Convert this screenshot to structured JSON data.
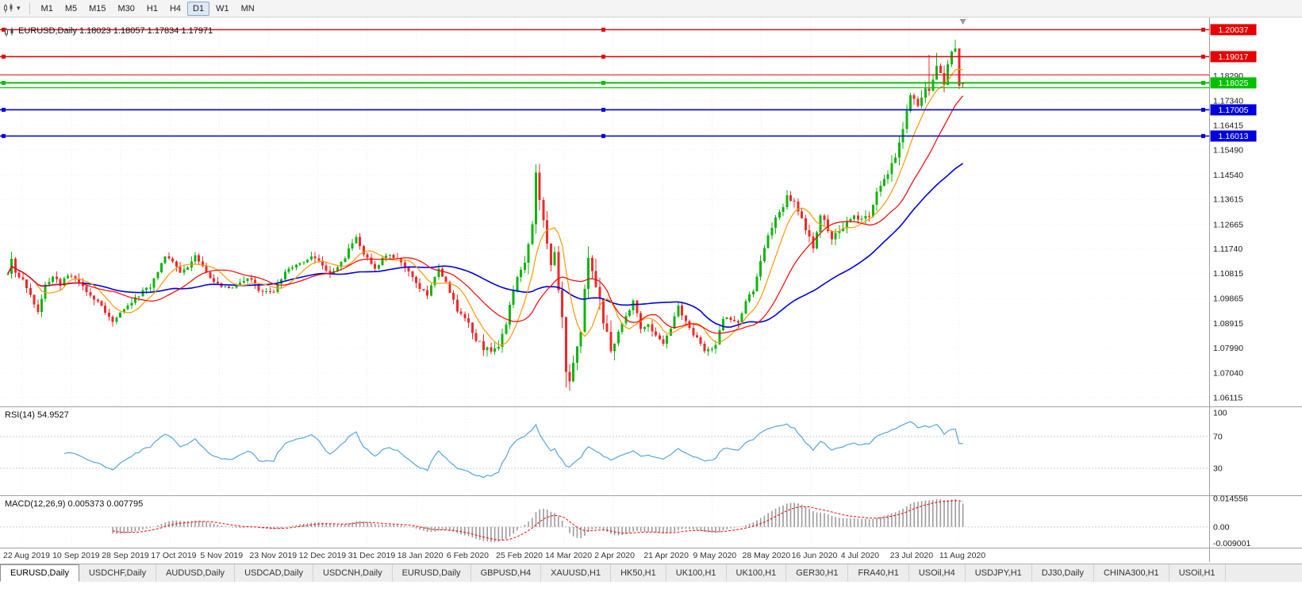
{
  "toolbar": {
    "timeframes": [
      "M1",
      "M5",
      "M15",
      "M30",
      "H1",
      "H4",
      "D1",
      "W1",
      "MN"
    ],
    "selected": "D1"
  },
  "main_chart": {
    "title_line": "EURUSD,Daily 1.18023 1.18057 1.17834 1.17971",
    "symbol": "EURUSD",
    "period": "Daily",
    "price_ticks": [
      "1.18290",
      "1.17340",
      "1.16415",
      "1.15490",
      "1.14540",
      "1.13615",
      "1.12665",
      "1.11740",
      "1.10815",
      "1.09865",
      "1.08915",
      "1.07990",
      "1.07040",
      "1.06115"
    ],
    "hlines": [
      {
        "price": 1.20037,
        "label": "1.20037",
        "color": "#e60000",
        "width": 1.4
      },
      {
        "price": 1.19017,
        "label": "1.19017",
        "color": "#e60000",
        "width": 1.4
      },
      {
        "price": 1.1833,
        "label": null,
        "color": "#e60000",
        "width": 1.1
      },
      {
        "price": 1.18025,
        "label": "1.18025",
        "color": "#00c000",
        "width": 2
      },
      {
        "price": 1.1784,
        "label": null,
        "color": "#00c000",
        "width": 1.1
      },
      {
        "price": 1.17005,
        "label": "1.17005",
        "color": "#0000dd",
        "width": 1.6
      },
      {
        "price": 1.16013,
        "label": "1.16013",
        "color": "#0000dd",
        "width": 1.6
      }
    ],
    "colors": {
      "up": "#0fb50f",
      "down": "#ef2929",
      "grid": "#e9e9e9",
      "separator": "#9e9e9e",
      "axis_text": "#1a1a1a",
      "date_text": "#333333",
      "rsi_line": "#52a7e0",
      "macd_hist": "#9b9b9b",
      "macd_signal": "#ff0000"
    }
  },
  "rsi": {
    "label_line": "RSI(14) 54.9527",
    "name": "RSI",
    "period": 14,
    "value": "54.9527",
    "ticks": [
      "100",
      "70",
      "30"
    ],
    "levels": [
      70,
      30
    ]
  },
  "macd": {
    "label_line": "MACD(12,26,9) 0.005373 0.007795",
    "name": "MACD",
    "params": "12,26,9",
    "values": "0.005373 0.007795",
    "ticks": [
      "0.014556",
      "0.00",
      "-0.009001"
    ]
  },
  "dates": [
    "22 Aug 2019",
    "10 Sep 2019",
    "28 Sep 2019",
    "17 Oct 2019",
    "5 Nov 2019",
    "23 Nov 2019",
    "12 Dec 2019",
    "31 Dec 2019",
    "18 Jan 2020",
    "6 Feb 2020",
    "25 Feb 2020",
    "14 Mar 2020",
    "2 Apr 2020",
    "21 Apr 2020",
    "9 May 2020",
    "28 May 2020",
    "16 Jun 2020",
    "4 Jul 2020",
    "23 Jul 2020",
    "11 Aug 2020"
  ],
  "window": {
    "active_tab_index": 0,
    "tabs": [
      "EURUSD,Daily",
      "USDCHF,Daily",
      "AUDUSD,Daily",
      "USDCAD,Daily",
      "USDCNH,Daily",
      "EURUSD,Daily",
      "GBPUSD,H4",
      "XAUUSD,H1",
      "HK50,H1",
      "UK100,H1",
      "UK100,H1",
      "GER30,H1",
      "FRA40,H1",
      "USOil,H4",
      "USDJPY,H1",
      "DJ30,Daily",
      "CHINA300,H1",
      "USOil,H1"
    ]
  },
  "chart_data": {
    "type": "candlestick",
    "symbol": "EURUSD",
    "timeframe": "Daily",
    "candles_count": 256,
    "price_range": [
      1.059,
      1.202
    ],
    "last_candle": {
      "open": 1.18023,
      "high": 1.18057,
      "low": 1.17834,
      "close": 1.17971
    },
    "close_anchors": [
      [
        0,
        1.108
      ],
      [
        1,
        1.114
      ],
      [
        2,
        1.109
      ],
      [
        4,
        1.1055
      ],
      [
        6,
        1.0995
      ],
      [
        8,
        1.093
      ],
      [
        10,
        1.1035
      ],
      [
        12,
        1.1065
      ],
      [
        14,
        1.104
      ],
      [
        16,
        1.1073
      ],
      [
        18,
        1.1068
      ],
      [
        21,
        1.1017
      ],
      [
        23,
        1.0985
      ],
      [
        26,
        1.094
      ],
      [
        28,
        1.0895
      ],
      [
        30,
        1.093
      ],
      [
        32,
        1.0965
      ],
      [
        35,
        1.1
      ],
      [
        38,
        1.1034
      ],
      [
        40,
        1.109
      ],
      [
        42,
        1.115
      ],
      [
        44,
        1.1125
      ],
      [
        46,
        1.108
      ],
      [
        48,
        1.1105
      ],
      [
        50,
        1.1152
      ],
      [
        52,
        1.111
      ],
      [
        54,
        1.1067
      ],
      [
        57,
        1.103
      ],
      [
        60,
        1.1022
      ],
      [
        62,
        1.105
      ],
      [
        65,
        1.1059
      ],
      [
        68,
        1.1005
      ],
      [
        71,
        1.1018
      ],
      [
        73,
        1.106
      ],
      [
        75,
        1.1104
      ],
      [
        78,
        1.112
      ],
      [
        80,
        1.1131
      ],
      [
        82,
        1.1145
      ],
      [
        84,
        1.111
      ],
      [
        86,
        1.1078
      ],
      [
        89,
        1.112
      ],
      [
        91,
        1.117
      ],
      [
        93,
        1.1212
      ],
      [
        95,
        1.116
      ],
      [
        98,
        1.1103
      ],
      [
        101,
        1.1155
      ],
      [
        104,
        1.1136
      ],
      [
        107,
        1.109
      ],
      [
        110,
        1.1023
      ],
      [
        112,
        1.1
      ],
      [
        115,
        1.1093
      ],
      [
        117,
        1.1048
      ],
      [
        120,
        1.0945
      ],
      [
        122,
        1.0915
      ],
      [
        125,
        1.083
      ],
      [
        127,
        1.08
      ],
      [
        129,
        1.0786
      ],
      [
        131,
        1.0805
      ],
      [
        133,
        1.0885
      ],
      [
        135,
        1.1026
      ],
      [
        137,
        1.109
      ],
      [
        138,
        1.1134
      ],
      [
        140,
        1.128
      ],
      [
        141,
        1.1452
      ],
      [
        142,
        1.136
      ],
      [
        143,
        1.128
      ],
      [
        144,
        1.1184
      ],
      [
        145,
        1.1105
      ],
      [
        146,
        1.118
      ],
      [
        147,
        1.102
      ],
      [
        148,
        1.092
      ],
      [
        149,
        1.069
      ],
      [
        150,
        1.0655
      ],
      [
        151,
        1.0725
      ],
      [
        152,
        1.079
      ],
      [
        153,
        1.085
      ],
      [
        154,
        1.101
      ],
      [
        155,
        1.114
      ],
      [
        156,
        1.108
      ],
      [
        157,
        1.1031
      ],
      [
        159,
        1.091
      ],
      [
        161,
        1.0791
      ],
      [
        163,
        1.086
      ],
      [
        165,
        1.0915
      ],
      [
        167,
        1.098
      ],
      [
        169,
        1.087
      ],
      [
        171,
        1.0885
      ],
      [
        172,
        1.0858
      ],
      [
        175,
        1.0821
      ],
      [
        177,
        1.088
      ],
      [
        179,
        1.0955
      ],
      [
        181,
        1.09
      ],
      [
        184,
        1.0833
      ],
      [
        186,
        1.0795
      ],
      [
        188,
        1.08
      ],
      [
        189,
        1.0805
      ],
      [
        191,
        1.0915
      ],
      [
        193,
        1.09
      ],
      [
        195,
        1.089
      ],
      [
        197,
        1.0982
      ],
      [
        199,
        1.101
      ],
      [
        201,
        1.1134
      ],
      [
        203,
        1.123
      ],
      [
        205,
        1.1291
      ],
      [
        207,
        1.134
      ],
      [
        208,
        1.1375
      ],
      [
        210,
        1.1345
      ],
      [
        211,
        1.1324
      ],
      [
        213,
        1.125
      ],
      [
        215,
        1.1177
      ],
      [
        217,
        1.1308
      ],
      [
        219,
        1.125
      ],
      [
        220,
        1.1218
      ],
      [
        222,
        1.1234
      ],
      [
        224,
        1.127
      ],
      [
        226,
        1.1308
      ],
      [
        228,
        1.128
      ],
      [
        230,
        1.13
      ],
      [
        232,
        1.1398
      ],
      [
        234,
        1.144
      ],
      [
        236,
        1.149
      ],
      [
        237,
        1.1526
      ],
      [
        239,
        1.162
      ],
      [
        241,
        1.1751
      ],
      [
        243,
        1.172
      ],
      [
        245,
        1.1778
      ],
      [
        246,
        1.1762
      ],
      [
        248,
        1.1873
      ],
      [
        249,
        1.184
      ],
      [
        250,
        1.1789
      ],
      [
        251,
        1.1864
      ],
      [
        252,
        1.192
      ],
      [
        253,
        1.1933
      ],
      [
        254,
        1.1797
      ],
      [
        255,
        1.17971
      ]
    ],
    "wick_overrides": {
      "1": {
        "high": 1.1164
      },
      "141": {
        "high": 1.1495
      },
      "149": {
        "low": 1.065
      },
      "150": {
        "low": 1.0636
      },
      "246": {
        "high": 1.1909
      },
      "248": {
        "high": 1.1916
      },
      "253": {
        "high": 1.1966
      }
    },
    "vol_zones": [
      [
        120,
        137,
        1.3
      ],
      [
        138,
        162,
        2.4
      ],
      [
        200,
        235,
        1.2
      ],
      [
        236,
        255,
        1.5
      ]
    ],
    "moving_averages": [
      {
        "period": 45,
        "color": "#0000e6",
        "width": 1.6
      },
      {
        "period": 8,
        "color": "#ff9900",
        "width": 1.2
      },
      {
        "period": 20,
        "color": "#ff0000",
        "width": 1.2
      }
    ]
  }
}
